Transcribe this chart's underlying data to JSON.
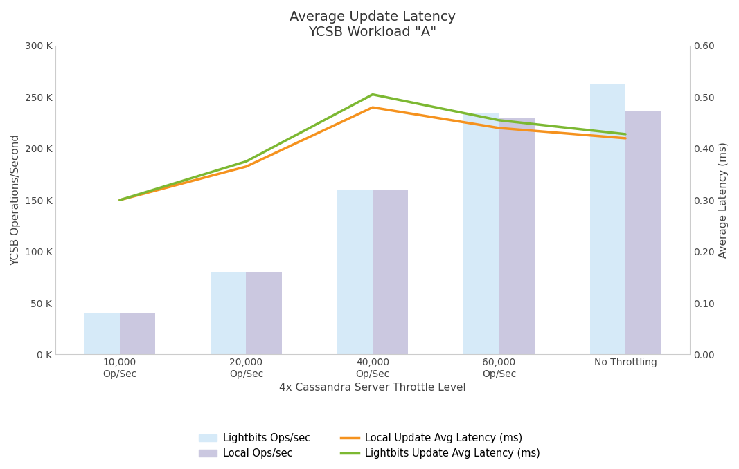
{
  "title": "Average Update Latency\nYCSB Workload \"A\"",
  "xlabel": "4x Cassandra Server Throttle Level",
  "ylabel_left": "YCSB Operations/Second",
  "ylabel_right": "Average Latency (ms)",
  "categories": [
    "10,000\nOp/Sec",
    "20,000\nOp/Sec",
    "40,000\nOp/Sec",
    "60,000\nOp/Sec",
    "No Throttling"
  ],
  "lightbits_ops": [
    40000,
    80000,
    160000,
    235000,
    262000
  ],
  "local_ops": [
    40000,
    80000,
    160000,
    230000,
    237000
  ],
  "local_latency": [
    0.3,
    0.365,
    0.48,
    0.44,
    0.42
  ],
  "lightbits_latency": [
    0.3,
    0.375,
    0.505,
    0.455,
    0.428
  ],
  "bar_color_lightbits": "#d6eaf8",
  "bar_color_local": "#cbc8e0",
  "line_color_local": "#f5921e",
  "line_color_lightbits": "#7cb832",
  "ylim_left": [
    0,
    300000
  ],
  "ylim_right": [
    0.0,
    0.6
  ],
  "yticks_left": [
    0,
    50000,
    100000,
    150000,
    200000,
    250000,
    300000
  ],
  "ytick_labels_left": [
    "0 K",
    "50 K",
    "100 K",
    "150 K",
    "200 K",
    "250 K",
    "300 K"
  ],
  "yticks_right": [
    0.0,
    0.1,
    0.2,
    0.3,
    0.4,
    0.5,
    0.6
  ],
  "ytick_labels_right": [
    "0.00",
    "0.10",
    "0.20",
    "0.30",
    "0.40",
    "0.50",
    "0.60"
  ],
  "legend_entries": [
    "Lightbits Ops/sec",
    "Local Ops/sec",
    "Local Update Avg Latency (ms)",
    "Lightbits Update Avg Latency (ms)"
  ],
  "bar_width": 0.28,
  "title_fontsize": 14,
  "axis_label_fontsize": 11,
  "tick_fontsize": 10,
  "legend_fontsize": 10.5
}
